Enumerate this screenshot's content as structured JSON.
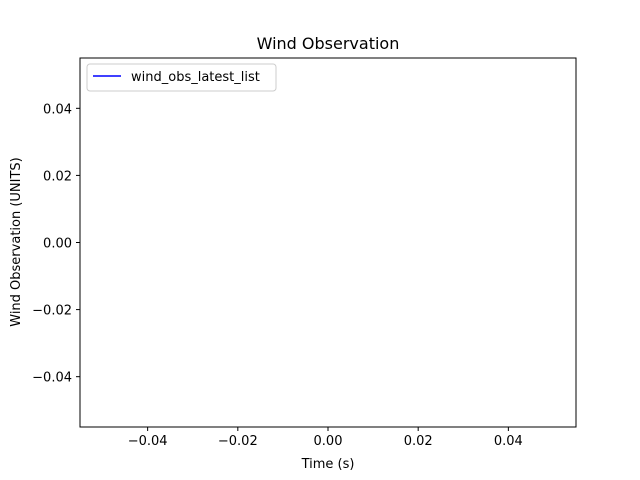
{
  "chart_data": {
    "type": "line",
    "title": "Wind Observation",
    "xlabel": "Time (s)",
    "ylabel": "Wind Observation (UNITS)",
    "xlim": [
      -0.055,
      0.055
    ],
    "ylim": [
      -0.055,
      0.055
    ],
    "xticks": [
      -0.04,
      -0.02,
      0.0,
      0.02,
      0.04
    ],
    "yticks": [
      -0.04,
      -0.02,
      0.0,
      0.02,
      0.04
    ],
    "xtick_labels": [
      "−0.04",
      "−0.02",
      "0.00",
      "0.02",
      "0.04"
    ],
    "ytick_labels": [
      "−0.04",
      "−0.02",
      "0.00",
      "0.02",
      "0.04"
    ],
    "grid": false,
    "legend_position": "top-left",
    "series": [
      {
        "name": "wind_obs_latest_list",
        "color": "#0000ff",
        "x": [],
        "y": []
      }
    ]
  }
}
